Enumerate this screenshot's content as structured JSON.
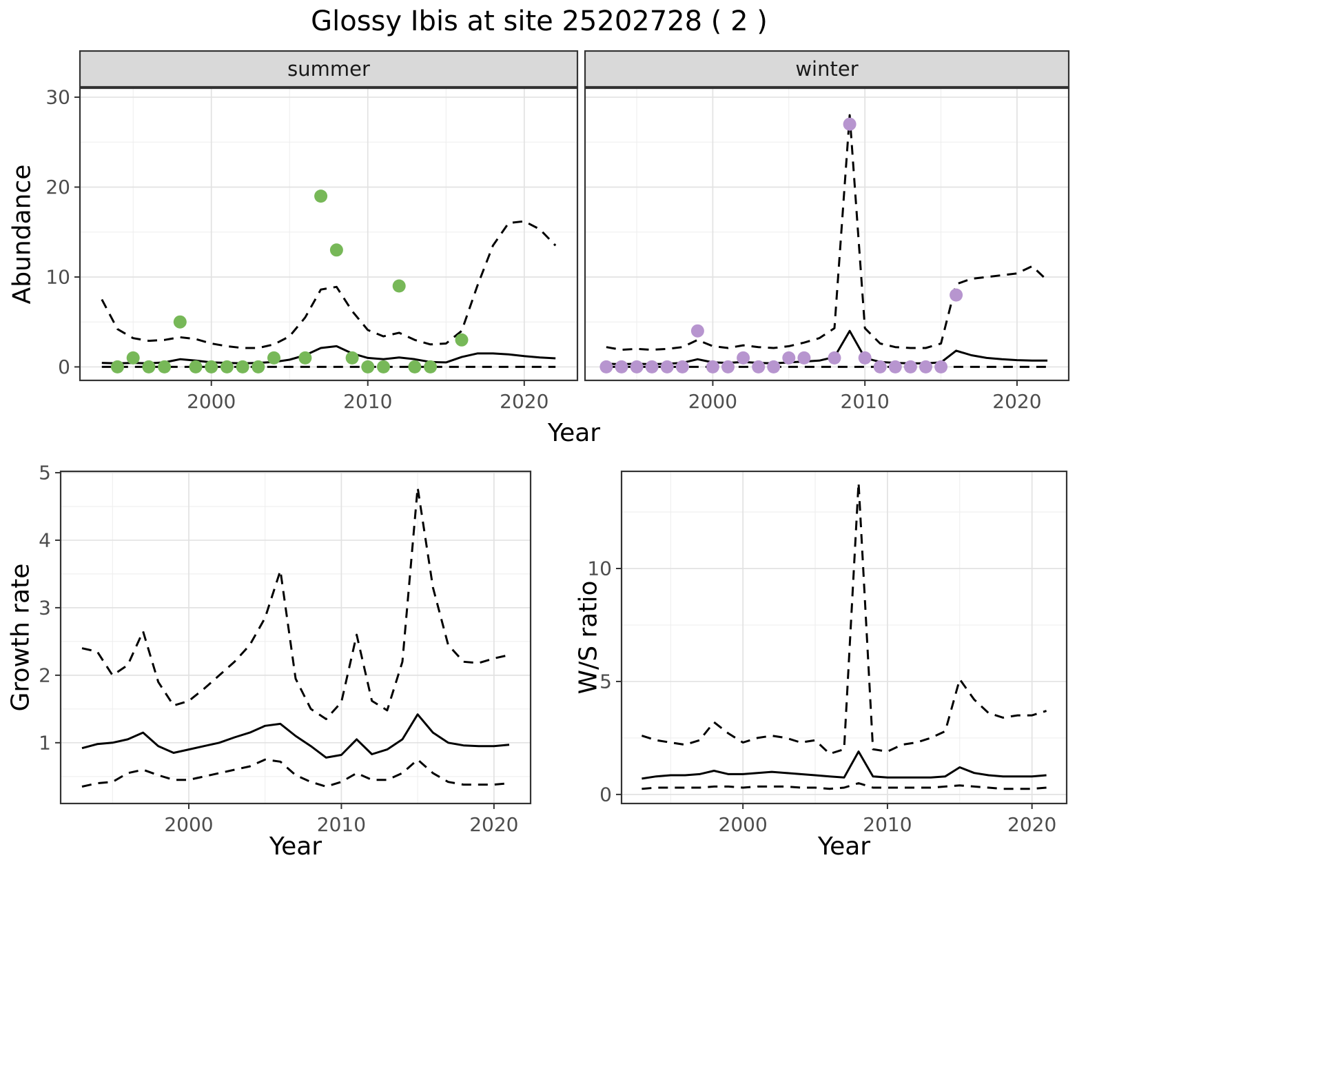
{
  "title": "Glossy Ibis at site 25202728 ( 2 )",
  "axis": {
    "abundance_label": "Abundance",
    "growth_label": "Growth rate",
    "ws_label": "W/S ratio",
    "top_x_label": "Year",
    "bottom_left_x_label": "Year",
    "bottom_right_x_label": "Year"
  },
  "colors": {
    "summer_points": "#77b858",
    "winter_points": "#b795cf",
    "line": "#000000",
    "strip_bg": "#d9d9d9",
    "panel_border": "#333333",
    "grid_major": "#e2e2e2",
    "grid_minor": "#ededed",
    "tick_text": "#4d4d4d"
  },
  "chart_data": [
    {
      "id": "summer_abundance",
      "type": "line",
      "facet_label": "summer",
      "xlabel": "Year",
      "ylabel": "Abundance",
      "xlim": [
        1991.6,
        2023.4
      ],
      "ylim": [
        -1.5,
        31
      ],
      "xticks": [
        2000,
        2010,
        2020
      ],
      "yticks": [
        0,
        10,
        20,
        30
      ],
      "x": [
        1993,
        1994,
        1995,
        1996,
        1997,
        1998,
        1999,
        2000,
        2001,
        2002,
        2003,
        2004,
        2005,
        2006,
        2007,
        2008,
        2009,
        2010,
        2011,
        2012,
        2013,
        2014,
        2015,
        2016,
        2017,
        2018,
        2019,
        2020,
        2021,
        2022
      ],
      "series": [
        {
          "name": "mean",
          "style": "solid",
          "values": [
            0.45,
            0.4,
            0.45,
            0.4,
            0.5,
            0.85,
            0.7,
            0.5,
            0.45,
            0.4,
            0.45,
            0.55,
            0.8,
            1.3,
            2.1,
            2.3,
            1.5,
            1.0,
            0.85,
            1.05,
            0.85,
            0.55,
            0.5,
            1.1,
            1.5,
            1.5,
            1.4,
            1.2,
            1.05,
            0.95
          ]
        },
        {
          "name": "upper_ci",
          "style": "dashed",
          "values": [
            7.5,
            4.2,
            3.2,
            2.9,
            3.0,
            3.3,
            3.1,
            2.6,
            2.3,
            2.1,
            2.1,
            2.5,
            3.4,
            5.5,
            8.6,
            8.9,
            6.2,
            4.1,
            3.4,
            3.8,
            3.0,
            2.5,
            2.6,
            4.0,
            9.0,
            13.5,
            16.0,
            16.2,
            15.3,
            13.5
          ]
        },
        {
          "name": "lower_ci",
          "style": "dashed",
          "values": [
            0,
            0,
            0,
            0,
            0,
            0,
            0,
            0,
            0,
            0,
            0,
            0,
            0,
            0,
            0,
            0,
            0,
            0,
            0,
            0,
            0,
            0,
            0,
            0,
            0,
            0,
            0,
            0,
            0,
            0
          ]
        }
      ],
      "points": {
        "color_key": "summer_points",
        "x": [
          1994,
          1995,
          1996,
          1997,
          1998,
          1999,
          2000,
          2001,
          2002,
          2003,
          2004,
          2006,
          2007,
          2008,
          2009,
          2010,
          2011,
          2012,
          2013,
          2014,
          2016
        ],
        "y": [
          0,
          1,
          0,
          0,
          5,
          0,
          0,
          0,
          0,
          0,
          1,
          1,
          19,
          13,
          1,
          0,
          0,
          9,
          0,
          0,
          3
        ]
      }
    },
    {
      "id": "winter_abundance",
      "type": "line",
      "facet_label": "winter",
      "xlabel": "Year",
      "ylabel": "Abundance",
      "xlim": [
        1991.6,
        2023.4
      ],
      "ylim": [
        -1.5,
        31
      ],
      "xticks": [
        2000,
        2010,
        2020
      ],
      "yticks": [
        0,
        10,
        20,
        30
      ],
      "x": [
        1993,
        1994,
        1995,
        1996,
        1997,
        1998,
        1999,
        2000,
        2001,
        2002,
        2003,
        2004,
        2005,
        2006,
        2007,
        2008,
        2009,
        2010,
        2011,
        2012,
        2013,
        2014,
        2015,
        2016,
        2017,
        2018,
        2019,
        2020,
        2021,
        2022
      ],
      "series": [
        {
          "name": "mean",
          "style": "solid",
          "values": [
            0.35,
            0.3,
            0.35,
            0.3,
            0.35,
            0.45,
            0.85,
            0.5,
            0.45,
            0.55,
            0.45,
            0.4,
            0.5,
            0.6,
            0.7,
            1.1,
            4.0,
            1.0,
            0.55,
            0.45,
            0.4,
            0.4,
            0.5,
            1.8,
            1.3,
            1.0,
            0.85,
            0.75,
            0.7,
            0.7
          ]
        },
        {
          "name": "upper_ci",
          "style": "dashed",
          "values": [
            2.2,
            1.9,
            2.0,
            1.9,
            2.0,
            2.2,
            3.0,
            2.3,
            2.1,
            2.4,
            2.2,
            2.1,
            2.3,
            2.7,
            3.2,
            4.3,
            28.0,
            4.3,
            2.6,
            2.2,
            2.1,
            2.1,
            2.6,
            9.2,
            9.8,
            10.0,
            10.2,
            10.4,
            11.2,
            9.6
          ]
        },
        {
          "name": "lower_ci",
          "style": "dashed",
          "values": [
            0,
            0,
            0,
            0,
            0,
            0,
            0,
            0,
            0,
            0,
            0,
            0,
            0,
            0,
            0,
            0,
            0,
            0,
            0,
            0,
            0,
            0,
            0,
            0,
            0,
            0,
            0,
            0,
            0,
            0
          ]
        }
      ],
      "points": {
        "color_key": "winter_points",
        "x": [
          1993,
          1994,
          1995,
          1996,
          1997,
          1998,
          1999,
          2000,
          2001,
          2002,
          2003,
          2004,
          2005,
          2006,
          2008,
          2009,
          2010,
          2011,
          2012,
          2013,
          2014,
          2015,
          2016
        ],
        "y": [
          0,
          0,
          0,
          0,
          0,
          0,
          4,
          0,
          0,
          1,
          0,
          0,
          1,
          1,
          1,
          27,
          1,
          0,
          0,
          0,
          0,
          0,
          8
        ]
      }
    },
    {
      "id": "growth_rate",
      "type": "line",
      "facet_label": "",
      "xlabel": "Year",
      "ylabel": "Growth rate",
      "xlim": [
        1991.6,
        2022.4
      ],
      "ylim": [
        0.1,
        5.02
      ],
      "xticks": [
        2000,
        2010,
        2020
      ],
      "yticks": [
        1,
        2,
        3,
        4,
        5
      ],
      "x": [
        1993,
        1994,
        1995,
        1996,
        1997,
        1998,
        1999,
        2000,
        2001,
        2002,
        2003,
        2004,
        2005,
        2006,
        2007,
        2008,
        2009,
        2010,
        2011,
        2012,
        2013,
        2014,
        2015,
        2016,
        2017,
        2018,
        2019,
        2020,
        2021
      ],
      "series": [
        {
          "name": "mean",
          "style": "solid",
          "values": [
            0.92,
            0.98,
            1.0,
            1.05,
            1.15,
            0.95,
            0.85,
            0.9,
            0.95,
            1.0,
            1.08,
            1.15,
            1.25,
            1.28,
            1.1,
            0.95,
            0.78,
            0.82,
            1.05,
            0.83,
            0.9,
            1.05,
            1.42,
            1.15,
            1.0,
            0.96,
            0.95,
            0.95,
            0.97
          ]
        },
        {
          "name": "upper_ci",
          "style": "dashed",
          "values": [
            2.4,
            2.35,
            2.0,
            2.15,
            2.65,
            1.9,
            1.55,
            1.62,
            1.8,
            2.0,
            2.2,
            2.45,
            2.85,
            3.55,
            1.95,
            1.5,
            1.35,
            1.6,
            2.6,
            1.62,
            1.48,
            2.2,
            4.78,
            3.3,
            2.45,
            2.2,
            2.18,
            2.25,
            2.3
          ]
        },
        {
          "name": "lower_ci",
          "style": "dashed",
          "values": [
            0.35,
            0.4,
            0.42,
            0.55,
            0.6,
            0.52,
            0.45,
            0.45,
            0.5,
            0.55,
            0.6,
            0.65,
            0.75,
            0.72,
            0.52,
            0.42,
            0.35,
            0.42,
            0.55,
            0.45,
            0.45,
            0.55,
            0.75,
            0.55,
            0.42,
            0.38,
            0.38,
            0.38,
            0.4
          ]
        }
      ]
    },
    {
      "id": "ws_ratio",
      "type": "line",
      "facet_label": "",
      "xlabel": "Year",
      "ylabel": "W/S ratio",
      "xlim": [
        1991.6,
        2022.4
      ],
      "ylim": [
        -0.4,
        14.3
      ],
      "xticks": [
        2000,
        2010,
        2020
      ],
      "yticks": [
        0,
        5,
        10
      ],
      "x": [
        1993,
        1994,
        1995,
        1996,
        1997,
        1998,
        1999,
        2000,
        2001,
        2002,
        2003,
        2004,
        2005,
        2006,
        2007,
        2008,
        2009,
        2010,
        2011,
        2012,
        2013,
        2014,
        2015,
        2016,
        2017,
        2018,
        2019,
        2020,
        2021
      ],
      "series": [
        {
          "name": "mean",
          "style": "solid",
          "values": [
            0.7,
            0.8,
            0.85,
            0.85,
            0.9,
            1.05,
            0.9,
            0.9,
            0.95,
            1.0,
            0.95,
            0.9,
            0.85,
            0.8,
            0.75,
            1.9,
            0.8,
            0.75,
            0.75,
            0.75,
            0.75,
            0.8,
            1.2,
            0.95,
            0.85,
            0.8,
            0.8,
            0.8,
            0.85
          ]
        },
        {
          "name": "upper_ci",
          "style": "dashed",
          "values": [
            2.6,
            2.4,
            2.3,
            2.2,
            2.4,
            3.2,
            2.7,
            2.3,
            2.5,
            2.6,
            2.5,
            2.3,
            2.4,
            1.8,
            2.0,
            13.8,
            2.0,
            1.9,
            2.2,
            2.3,
            2.5,
            2.8,
            5.1,
            4.2,
            3.6,
            3.4,
            3.5,
            3.5,
            3.7
          ]
        },
        {
          "name": "lower_ci",
          "style": "dashed",
          "values": [
            0.25,
            0.3,
            0.3,
            0.3,
            0.3,
            0.35,
            0.35,
            0.3,
            0.35,
            0.35,
            0.35,
            0.3,
            0.3,
            0.25,
            0.3,
            0.5,
            0.3,
            0.3,
            0.3,
            0.3,
            0.3,
            0.35,
            0.4,
            0.35,
            0.3,
            0.25,
            0.25,
            0.25,
            0.3
          ]
        }
      ]
    }
  ]
}
